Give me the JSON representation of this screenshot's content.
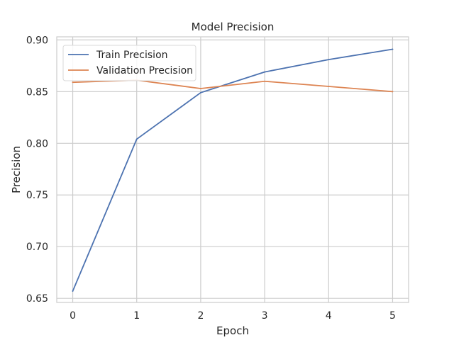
{
  "chart_data": {
    "type": "line",
    "title": "Model Precision",
    "xlabel": "Epoch",
    "ylabel": "Precision",
    "x": [
      0,
      1,
      2,
      3,
      4,
      5
    ],
    "x_ticks": [
      "0",
      "1",
      "2",
      "3",
      "4",
      "5"
    ],
    "y_ticks": [
      "0.65",
      "0.70",
      "0.75",
      "0.80",
      "0.85",
      "0.90"
    ],
    "xlim": [
      -0.25,
      5.25
    ],
    "ylim": [
      0.646,
      0.903
    ],
    "grid": true,
    "legend_position": "upper-left",
    "series": [
      {
        "name": "Train Precision",
        "color": "#4c72b0",
        "values": [
          0.657,
          0.804,
          0.849,
          0.869,
          0.881,
          0.891
        ]
      },
      {
        "name": "Validation Precision",
        "color": "#dd8452",
        "values": [
          0.859,
          0.861,
          0.853,
          0.86,
          0.855,
          0.85
        ]
      }
    ]
  }
}
